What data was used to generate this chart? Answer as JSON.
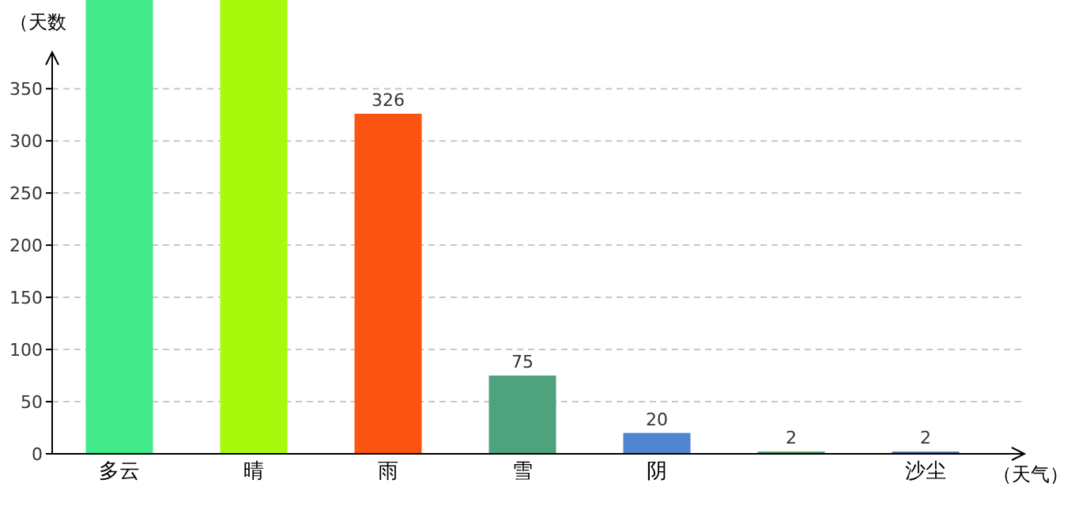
{
  "chart_data": {
    "type": "bar",
    "xlabel": "（天气）",
    "ylabel": "（天数",
    "categories": [
      "多云",
      "晴",
      "雨",
      "雪",
      "阴",
      null,
      "沙尘"
    ],
    "values": [
      435,
      435,
      326,
      75,
      20,
      2,
      2
    ],
    "colors": [
      "#43ea8a",
      "#a8fa0c",
      "#fb5412",
      "#4fa27e",
      "#4f86cf",
      "#3c8f5a",
      "#3a5c9a"
    ],
    "value_labels": [
      null,
      null,
      "326",
      "75",
      "20",
      "2",
      "2"
    ],
    "ylim": [
      0,
      435
    ],
    "yticks": [
      0,
      50,
      100,
      150,
      200,
      250,
      300,
      350
    ],
    "grid": "y"
  }
}
